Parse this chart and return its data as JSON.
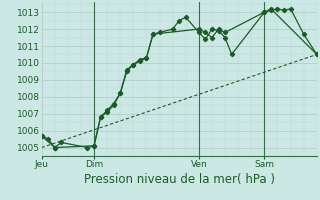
{
  "background_color": "#cce8e4",
  "plot_bg_color": "#cce8e4",
  "grid_color": "#b0c8c4",
  "grid_color_minor": "#c0d8d4",
  "line_color": "#1a5c28",
  "xlabel": "Pression niveau de la mer( hPa )",
  "ylim": [
    1004.5,
    1013.6
  ],
  "yticks": [
    1005,
    1006,
    1007,
    1008,
    1009,
    1010,
    1011,
    1012,
    1013
  ],
  "xlabel_fontsize": 8.5,
  "ytick_fontsize": 6.5,
  "xtick_fontsize": 6.5,
  "xtick_labels": [
    "Jeu",
    "Dim",
    "Ven",
    "Sam"
  ],
  "xtick_positions": [
    0,
    16,
    48,
    68
  ],
  "xlim": [
    0,
    84
  ],
  "vlines_x": [
    16,
    48,
    68
  ],
  "series1_x": [
    0,
    2,
    4,
    6,
    14,
    16,
    18,
    20,
    22,
    24,
    26,
    28,
    30,
    32,
    34,
    36,
    40,
    42,
    44,
    48,
    50,
    52,
    54,
    56,
    58,
    68,
    70,
    72,
    74,
    76,
    80,
    84
  ],
  "series1_y": [
    1005.7,
    1005.5,
    1005.0,
    1005.3,
    1005.0,
    1005.1,
    1006.8,
    1007.1,
    1007.5,
    1008.2,
    1009.6,
    1009.9,
    1010.2,
    1010.3,
    1011.7,
    1011.8,
    1012.0,
    1012.5,
    1012.7,
    1011.8,
    1011.4,
    1012.0,
    1011.9,
    1011.5,
    1010.5,
    1013.0,
    1013.1,
    1013.2,
    1013.1,
    1013.2,
    1011.7,
    1010.5
  ],
  "series2_x": [
    0,
    4,
    16,
    18,
    20,
    22,
    24,
    26,
    28,
    30,
    32,
    34,
    48,
    50,
    52,
    54,
    56,
    68,
    70,
    84
  ],
  "series2_y": [
    1005.7,
    1005.0,
    1005.1,
    1006.8,
    1007.2,
    1007.6,
    1008.2,
    1009.5,
    1009.9,
    1010.1,
    1010.3,
    1011.7,
    1012.0,
    1011.8,
    1011.5,
    1012.0,
    1011.8,
    1013.0,
    1013.2,
    1010.5
  ],
  "series3_x": [
    0,
    84
  ],
  "series3_y": [
    1005.0,
    1010.5
  ]
}
